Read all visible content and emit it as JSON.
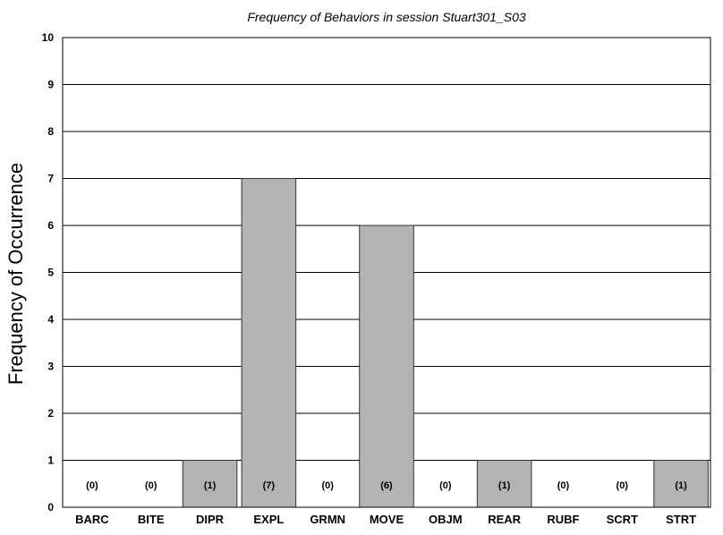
{
  "chart_data": {
    "type": "bar",
    "title": "Frequency of Behaviors in session Stuart301_S03",
    "xlabel": "",
    "ylabel": "Frequency of Occurrence",
    "ylim": [
      0,
      10
    ],
    "yticks": [
      "0",
      "1",
      "2",
      "3",
      "4",
      "5",
      "6",
      "7",
      "8",
      "9",
      "10"
    ],
    "grid": true,
    "categories": [
      "BARC",
      "BITE",
      "DIPR",
      "EXPL",
      "GRMN",
      "MOVE",
      "OBJM",
      "REAR",
      "RUBF",
      "SCRT",
      "STRT"
    ],
    "values": [
      0,
      0,
      1,
      7,
      0,
      6,
      0,
      1,
      0,
      0,
      1
    ],
    "data_labels": [
      "(0)",
      "(0)",
      "(1)",
      "(7)",
      "(0)",
      "(6)",
      "(0)",
      "(1)",
      "(0)",
      "(0)",
      "(1)"
    ],
    "colors": {
      "bar": "#b3b3b3",
      "bar_edge": "#333333",
      "grid": "#000000",
      "text": "#000000"
    }
  }
}
